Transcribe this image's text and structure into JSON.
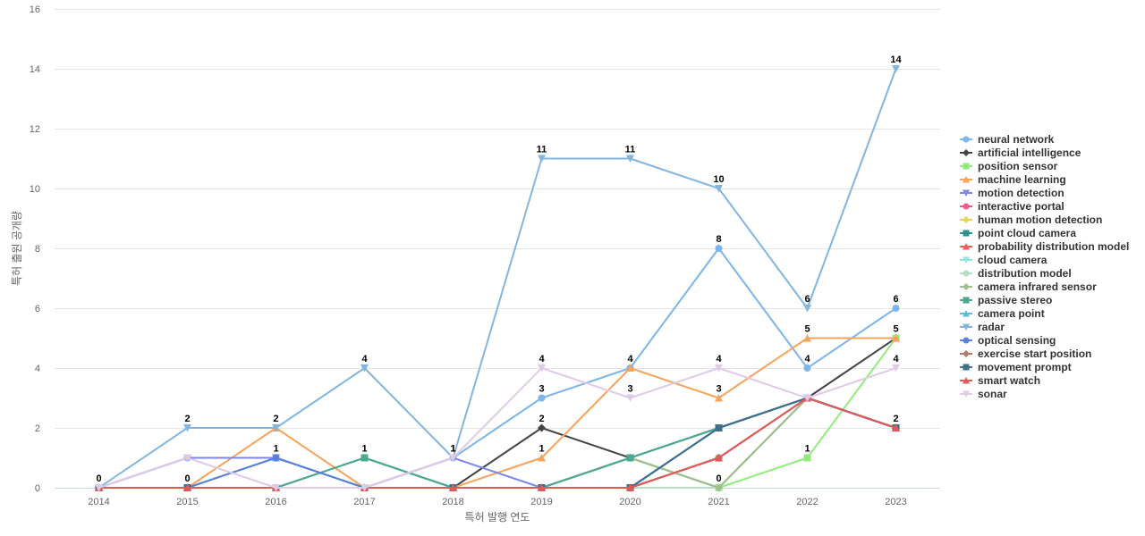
{
  "chart_data": {
    "type": "line",
    "title": "",
    "xlabel": "특허 발행 연도",
    "ylabel": "특허 출원 공개량",
    "x": [
      "2014",
      "2015",
      "2016",
      "2017",
      "2018",
      "2019",
      "2020",
      "2021",
      "2022",
      "2023"
    ],
    "ylim": [
      0,
      16
    ],
    "yticks": [
      0,
      2,
      4,
      6,
      8,
      10,
      12,
      14,
      16
    ],
    "grid": true,
    "legend_position": "right",
    "series": [
      {
        "name": "neural network",
        "color": "#7cb5ec",
        "marker": "circle",
        "values": [
          0,
          1,
          1,
          0,
          1,
          3,
          4,
          8,
          4,
          6
        ],
        "labels": [
          false,
          false,
          false,
          false,
          false,
          true,
          false,
          true,
          true,
          true
        ]
      },
      {
        "name": "artificial intelligence",
        "color": "#434348",
        "marker": "diamond",
        "values": [
          0,
          0,
          0,
          0,
          0,
          2,
          1,
          0,
          3,
          5
        ],
        "labels": [
          false,
          false,
          false,
          false,
          false,
          true,
          false,
          true,
          false,
          false
        ]
      },
      {
        "name": "position sensor",
        "color": "#90ed7d",
        "marker": "square",
        "values": [
          0,
          0,
          0,
          0,
          0,
          0,
          1,
          0,
          1,
          5
        ],
        "labels": [
          false,
          false,
          false,
          false,
          false,
          false,
          false,
          false,
          true,
          true
        ]
      },
      {
        "name": "machine learning",
        "color": "#f7a35c",
        "marker": "triangle",
        "values": [
          0,
          0,
          2,
          0,
          0,
          1,
          4,
          3,
          5,
          5
        ],
        "labels": [
          false,
          false,
          false,
          false,
          false,
          true,
          true,
          true,
          true,
          false
        ]
      },
      {
        "name": "motion detection",
        "color": "#8085e9",
        "marker": "triangle-down",
        "values": [
          0,
          1,
          1,
          0,
          1,
          0,
          1,
          2,
          3,
          2
        ],
        "labels": [
          false,
          false,
          false,
          false,
          false,
          false,
          false,
          false,
          false,
          false
        ]
      },
      {
        "name": "interactive portal",
        "color": "#f15c80",
        "marker": "circle",
        "values": [
          0,
          0,
          0,
          0,
          0,
          0,
          0,
          1,
          3,
          2
        ],
        "labels": [
          false,
          false,
          false,
          false,
          false,
          false,
          false,
          false,
          false,
          false
        ]
      },
      {
        "name": "human motion detection",
        "color": "#e4d354",
        "marker": "diamond",
        "values": [
          0,
          0,
          0,
          0,
          0,
          0,
          0,
          1,
          3,
          2
        ],
        "labels": [
          false,
          false,
          false,
          false,
          false,
          false,
          false,
          false,
          false,
          false
        ]
      },
      {
        "name": "point cloud camera",
        "color": "#2b908f",
        "marker": "square",
        "values": [
          0,
          0,
          0,
          1,
          0,
          0,
          1,
          2,
          3,
          2
        ],
        "labels": [
          false,
          false,
          false,
          true,
          false,
          false,
          false,
          false,
          false,
          false
        ]
      },
      {
        "name": "probability distribution model",
        "color": "#f45b5b",
        "marker": "triangle",
        "values": [
          0,
          0,
          0,
          0,
          0,
          0,
          0,
          1,
          3,
          2
        ],
        "labels": [
          false,
          false,
          false,
          false,
          false,
          false,
          false,
          false,
          false,
          false
        ]
      },
      {
        "name": "cloud camera",
        "color": "#91e8e1",
        "marker": "triangle-down",
        "values": [
          0,
          0,
          0,
          0,
          0,
          0,
          0,
          2,
          3,
          2
        ],
        "labels": [
          false,
          false,
          false,
          false,
          false,
          false,
          false,
          false,
          false,
          false
        ]
      },
      {
        "name": "distribution model",
        "color": "#b5dfc3",
        "marker": "circle",
        "values": [
          0,
          0,
          0,
          0,
          0,
          0,
          0,
          0,
          3,
          2
        ],
        "labels": [
          false,
          false,
          false,
          false,
          false,
          false,
          false,
          false,
          false,
          false
        ]
      },
      {
        "name": "camera infrared sensor",
        "color": "#9fc08c",
        "marker": "diamond",
        "values": [
          0,
          0,
          0,
          0,
          0,
          0,
          1,
          0,
          3,
          2
        ],
        "labels": [
          false,
          false,
          false,
          false,
          false,
          false,
          false,
          false,
          false,
          false
        ]
      },
      {
        "name": "passive stereo",
        "color": "#4ca98f",
        "marker": "square",
        "values": [
          0,
          0,
          0,
          1,
          0,
          0,
          1,
          2,
          3,
          2
        ],
        "labels": [
          false,
          false,
          false,
          false,
          false,
          false,
          false,
          false,
          false,
          false
        ]
      },
      {
        "name": "camera point",
        "color": "#5bc0de",
        "marker": "triangle",
        "values": [
          0,
          0,
          1,
          0,
          0,
          0,
          0,
          2,
          3,
          2
        ],
        "labels": [
          false,
          false,
          false,
          false,
          false,
          false,
          false,
          false,
          false,
          false
        ]
      },
      {
        "name": "radar",
        "color": "#82b6e0",
        "marker": "triangle-down",
        "values": [
          0,
          2,
          2,
          4,
          1,
          11,
          11,
          10,
          6,
          14
        ],
        "labels": [
          true,
          true,
          true,
          true,
          true,
          true,
          true,
          true,
          true,
          true
        ]
      },
      {
        "name": "optical sensing",
        "color": "#5b7fdb",
        "marker": "circle",
        "values": [
          0,
          0,
          1,
          0,
          0,
          0,
          0,
          2,
          3,
          2
        ],
        "labels": [
          false,
          true,
          true,
          false,
          false,
          false,
          false,
          false,
          false,
          false
        ]
      },
      {
        "name": "exercise start position",
        "color": "#b07c6b",
        "marker": "diamond",
        "values": [
          0,
          0,
          0,
          0,
          0,
          0,
          0,
          1,
          3,
          2
        ],
        "labels": [
          false,
          false,
          false,
          false,
          false,
          false,
          false,
          false,
          false,
          false
        ]
      },
      {
        "name": "movement prompt",
        "color": "#3f6e8a",
        "marker": "square",
        "values": [
          0,
          0,
          0,
          0,
          0,
          0,
          0,
          2,
          3,
          2
        ],
        "labels": [
          false,
          false,
          false,
          false,
          false,
          false,
          false,
          false,
          false,
          false
        ]
      },
      {
        "name": "smart watch",
        "color": "#e05a5a",
        "marker": "triangle",
        "values": [
          0,
          0,
          0,
          0,
          0,
          0,
          0,
          1,
          3,
          2
        ],
        "labels": [
          false,
          false,
          false,
          false,
          false,
          false,
          false,
          false,
          false,
          true
        ]
      },
      {
        "name": "sonar",
        "color": "#dfcbe6",
        "marker": "triangle-down",
        "values": [
          0,
          1,
          0,
          0,
          1,
          4,
          3,
          4,
          3,
          4
        ],
        "labels": [
          false,
          false,
          false,
          false,
          true,
          true,
          true,
          true,
          false,
          true
        ]
      }
    ]
  }
}
